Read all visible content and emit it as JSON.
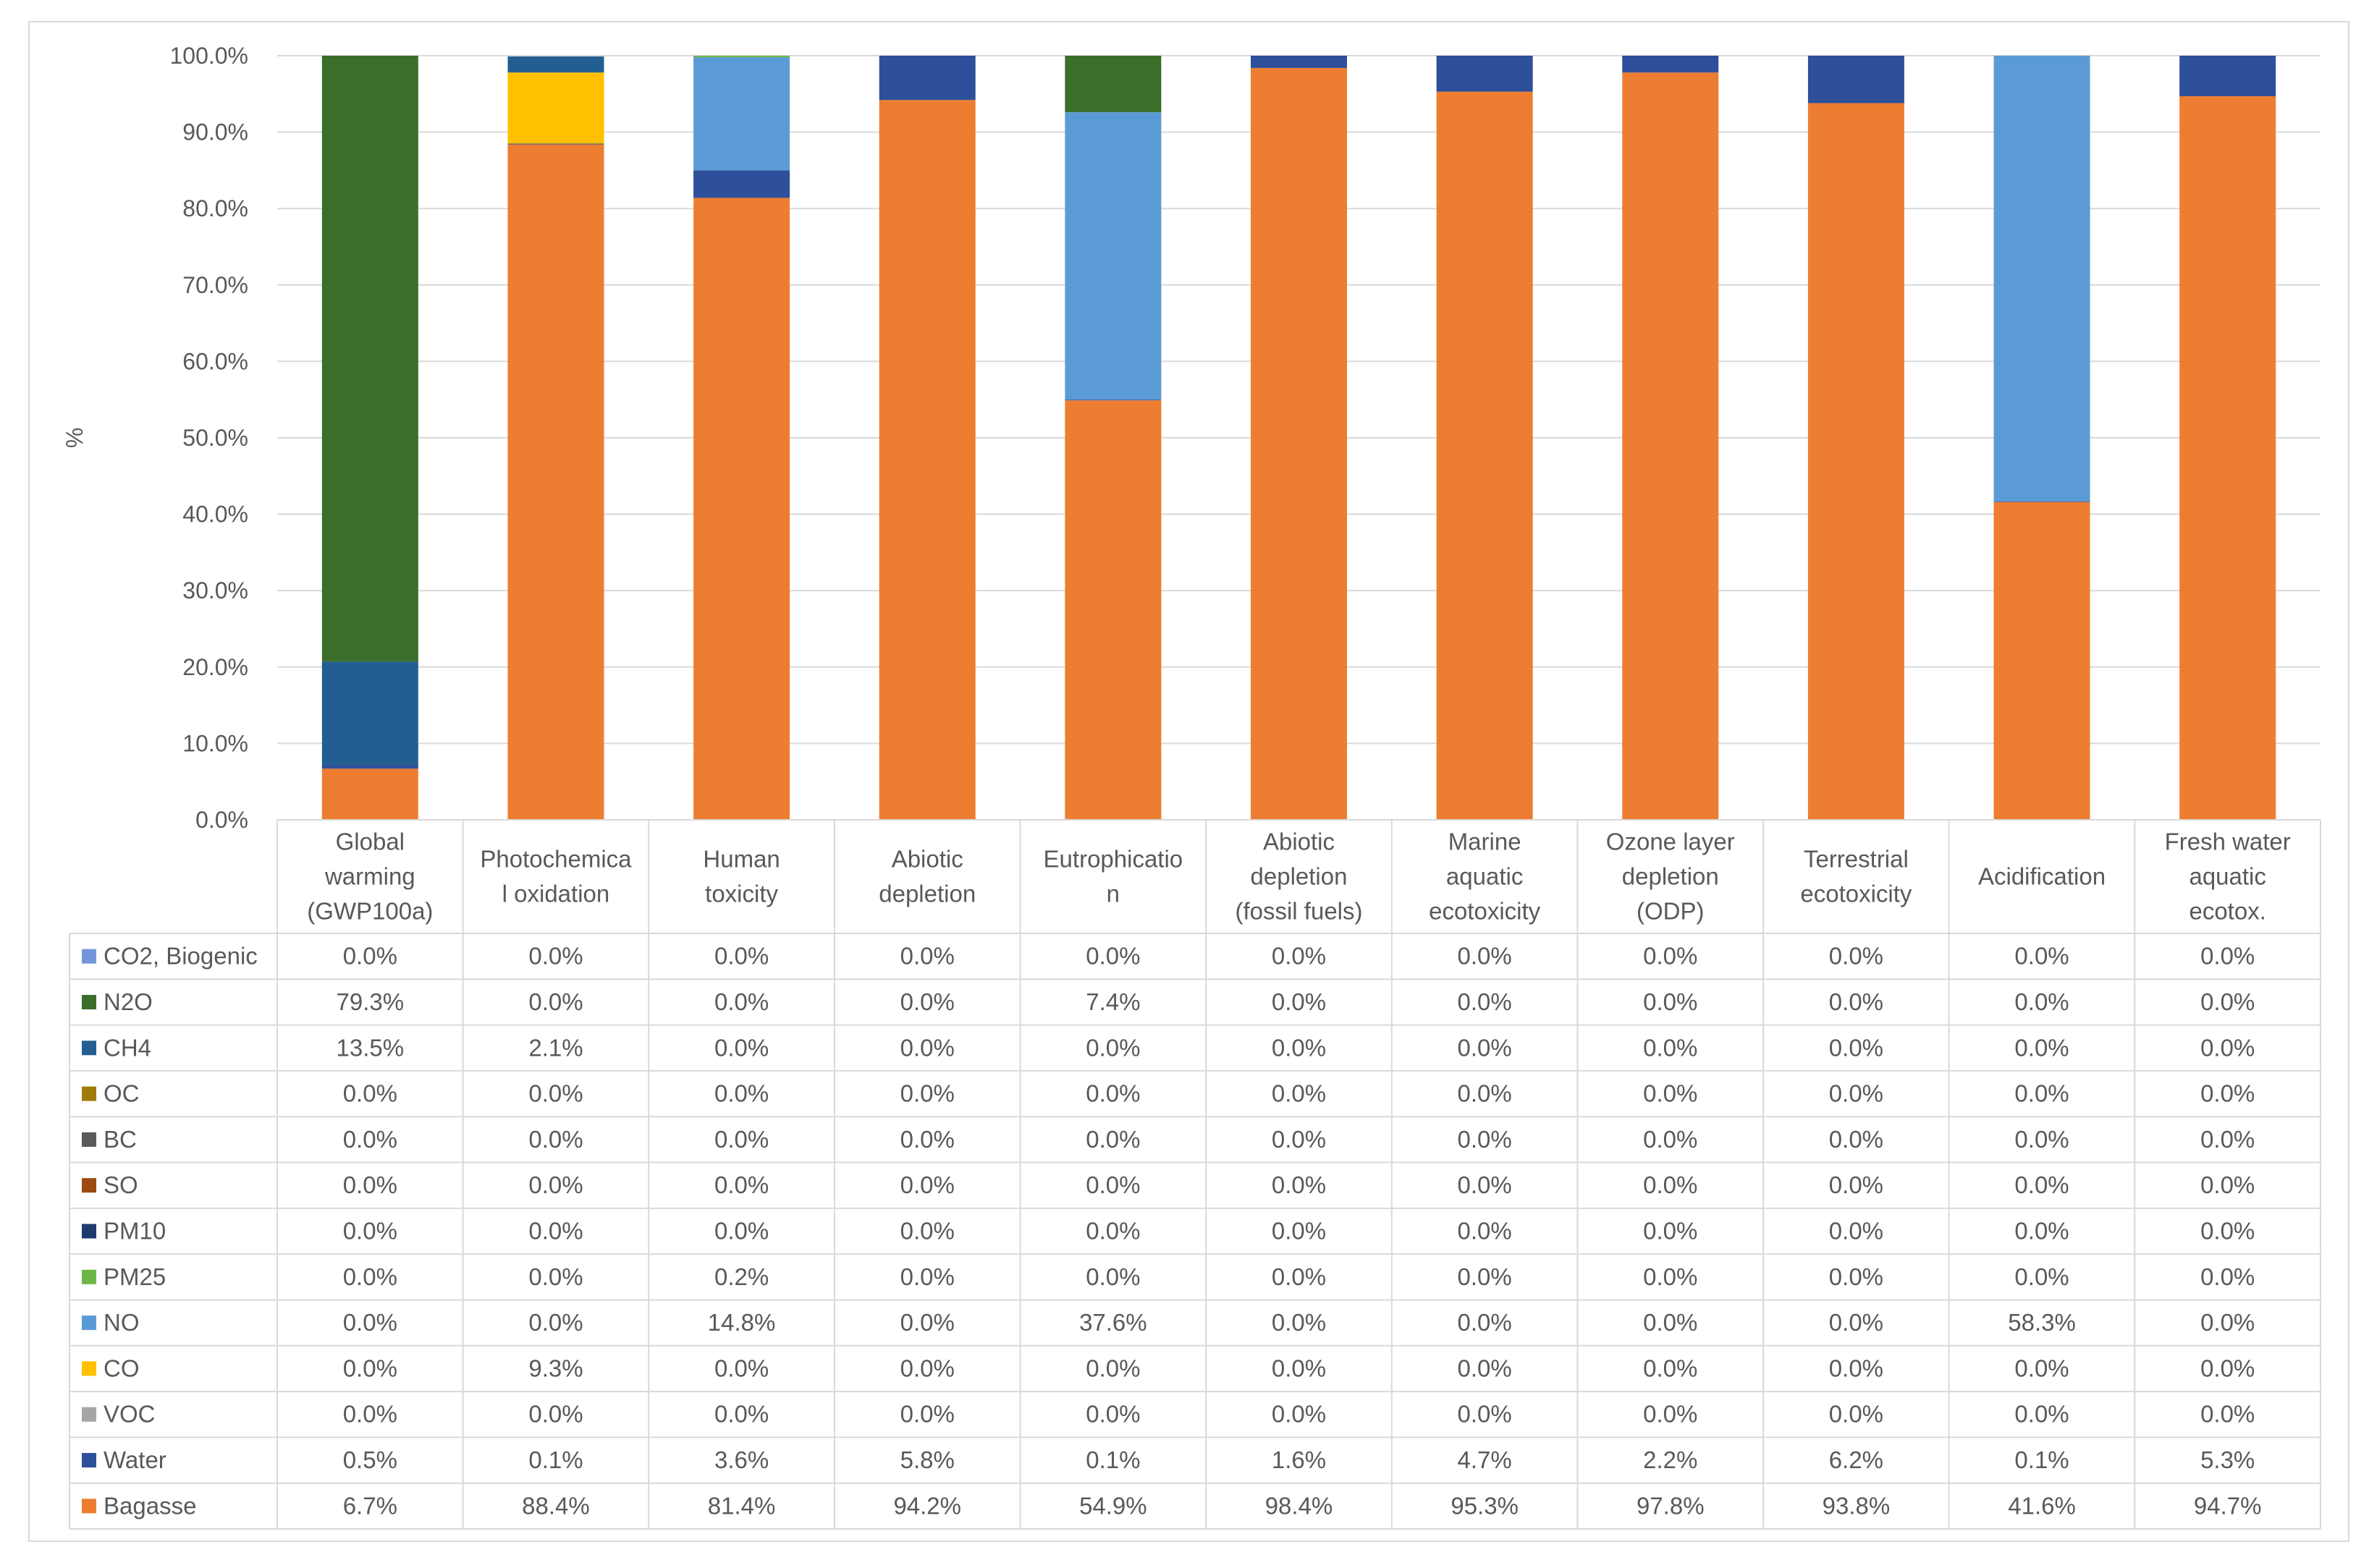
{
  "chart_data": {
    "type": "bar",
    "stacked": true,
    "title": "",
    "xlabel": "",
    "ylabel": "%",
    "ylim": [
      0,
      100
    ],
    "y_ticks": [
      "0.0%",
      "10.0%",
      "20.0%",
      "30.0%",
      "40.0%",
      "50.0%",
      "60.0%",
      "70.0%",
      "80.0%",
      "90.0%",
      "100.0%"
    ],
    "grid": true,
    "legend_placement": "data-table",
    "categories": [
      [
        "Global",
        "warming",
        "(GWP100a)"
      ],
      [
        "Photochemica",
        "l oxidation"
      ],
      [
        "Human",
        "toxicity"
      ],
      [
        "Abiotic",
        "depletion"
      ],
      [
        "Eutrophicatio",
        "n"
      ],
      [
        "Abiotic",
        "depletion",
        "(fossil fuels)"
      ],
      [
        "Marine",
        "aquatic",
        "ecotoxicity"
      ],
      [
        "Ozone layer",
        "depletion",
        "(ODP)"
      ],
      [
        "Terrestrial",
        "ecotoxicity"
      ],
      [
        "Acidification"
      ],
      [
        "Fresh water",
        "aquatic",
        "ecotox."
      ]
    ],
    "series": [
      {
        "name": "CO2, Biogenic",
        "color": "#7396d8",
        "values": [
          0.0,
          0.0,
          0.0,
          0.0,
          0.0,
          0.0,
          0.0,
          0.0,
          0.0,
          0.0,
          0.0
        ],
        "labels": [
          "0.0%",
          "0.0%",
          "0.0%",
          "0.0%",
          "0.0%",
          "0.0%",
          "0.0%",
          "0.0%",
          "0.0%",
          "0.0%",
          "0.0%"
        ]
      },
      {
        "name": "N2O",
        "color": "#3b6e2a",
        "values": [
          79.3,
          0.0,
          0.0,
          0.0,
          7.4,
          0.0,
          0.0,
          0.0,
          0.0,
          0.0,
          0.0
        ],
        "labels": [
          "79.3%",
          "0.0%",
          "0.0%",
          "0.0%",
          "7.4%",
          "0.0%",
          "0.0%",
          "0.0%",
          "0.0%",
          "0.0%",
          "0.0%"
        ]
      },
      {
        "name": "CH4",
        "color": "#225e92",
        "values": [
          13.5,
          2.1,
          0.0,
          0.0,
          0.0,
          0.0,
          0.0,
          0.0,
          0.0,
          0.0,
          0.0
        ],
        "labels": [
          "13.5%",
          "2.1%",
          "0.0%",
          "0.0%",
          "0.0%",
          "0.0%",
          "0.0%",
          "0.0%",
          "0.0%",
          "0.0%",
          "0.0%"
        ]
      },
      {
        "name": "OC",
        "color": "#9e7b0b",
        "values": [
          0.0,
          0.0,
          0.0,
          0.0,
          0.0,
          0.0,
          0.0,
          0.0,
          0.0,
          0.0,
          0.0
        ],
        "labels": [
          "0.0%",
          "0.0%",
          "0.0%",
          "0.0%",
          "0.0%",
          "0.0%",
          "0.0%",
          "0.0%",
          "0.0%",
          "0.0%",
          "0.0%"
        ]
      },
      {
        "name": "BC",
        "color": "#5a5a5a",
        "values": [
          0.0,
          0.0,
          0.0,
          0.0,
          0.0,
          0.0,
          0.0,
          0.0,
          0.0,
          0.0,
          0.0
        ],
        "labels": [
          "0.0%",
          "0.0%",
          "0.0%",
          "0.0%",
          "0.0%",
          "0.0%",
          "0.0%",
          "0.0%",
          "0.0%",
          "0.0%",
          "0.0%"
        ]
      },
      {
        "name": "SO",
        "color": "#9c4a12",
        "values": [
          0.0,
          0.0,
          0.0,
          0.0,
          0.0,
          0.0,
          0.0,
          0.0,
          0.0,
          0.0,
          0.0
        ],
        "labels": [
          "0.0%",
          "0.0%",
          "0.0%",
          "0.0%",
          "0.0%",
          "0.0%",
          "0.0%",
          "0.0%",
          "0.0%",
          "0.0%",
          "0.0%"
        ]
      },
      {
        "name": "PM10",
        "color": "#1f3a6e",
        "values": [
          0.0,
          0.0,
          0.0,
          0.0,
          0.0,
          0.0,
          0.0,
          0.0,
          0.0,
          0.0,
          0.0
        ],
        "labels": [
          "0.0%",
          "0.0%",
          "0.0%",
          "0.0%",
          "0.0%",
          "0.0%",
          "0.0%",
          "0.0%",
          "0.0%",
          "0.0%",
          "0.0%"
        ]
      },
      {
        "name": "PM25",
        "color": "#6fb648",
        "values": [
          0.0,
          0.0,
          0.2,
          0.0,
          0.0,
          0.0,
          0.0,
          0.0,
          0.0,
          0.0,
          0.0
        ],
        "labels": [
          "0.0%",
          "0.0%",
          "0.2%",
          "0.0%",
          "0.0%",
          "0.0%",
          "0.0%",
          "0.0%",
          "0.0%",
          "0.0%",
          "0.0%"
        ]
      },
      {
        "name": "NO",
        "color": "#5b9bd5",
        "values": [
          0.0,
          0.0,
          14.8,
          0.0,
          37.6,
          0.0,
          0.0,
          0.0,
          0.0,
          58.3,
          0.0
        ],
        "labels": [
          "0.0%",
          "0.0%",
          "14.8%",
          "0.0%",
          "37.6%",
          "0.0%",
          "0.0%",
          "0.0%",
          "0.0%",
          "58.3%",
          "0.0%"
        ]
      },
      {
        "name": "CO",
        "color": "#ffc000",
        "values": [
          0.0,
          9.3,
          0.0,
          0.0,
          0.0,
          0.0,
          0.0,
          0.0,
          0.0,
          0.0,
          0.0
        ],
        "labels": [
          "0.0%",
          "9.3%",
          "0.0%",
          "0.0%",
          "0.0%",
          "0.0%",
          "0.0%",
          "0.0%",
          "0.0%",
          "0.0%",
          "0.0%"
        ]
      },
      {
        "name": "VOC",
        "color": "#a5a5a5",
        "values": [
          0.0,
          0.0,
          0.0,
          0.0,
          0.0,
          0.0,
          0.0,
          0.0,
          0.0,
          0.0,
          0.0
        ],
        "labels": [
          "0.0%",
          "0.0%",
          "0.0%",
          "0.0%",
          "0.0%",
          "0.0%",
          "0.0%",
          "0.0%",
          "0.0%",
          "0.0%",
          "0.0%"
        ]
      },
      {
        "name": "Water",
        "color": "#2e4f9a",
        "values": [
          0.5,
          0.1,
          3.6,
          5.8,
          0.1,
          1.6,
          4.7,
          2.2,
          6.2,
          0.1,
          5.3
        ],
        "labels": [
          "0.5%",
          "0.1%",
          "3.6%",
          "5.8%",
          "0.1%",
          "1.6%",
          "4.7%",
          "2.2%",
          "6.2%",
          "0.1%",
          "5.3%"
        ]
      },
      {
        "name": "Bagasse",
        "color": "#ed7d31",
        "values": [
          6.7,
          88.4,
          81.4,
          94.2,
          54.9,
          98.4,
          95.3,
          97.8,
          93.8,
          41.6,
          94.7
        ],
        "labels": [
          "6.7%",
          "88.4%",
          "81.4%",
          "94.2%",
          "54.9%",
          "98.4%",
          "95.3%",
          "97.8%",
          "93.8%",
          "41.6%",
          "94.7%"
        ]
      }
    ]
  }
}
